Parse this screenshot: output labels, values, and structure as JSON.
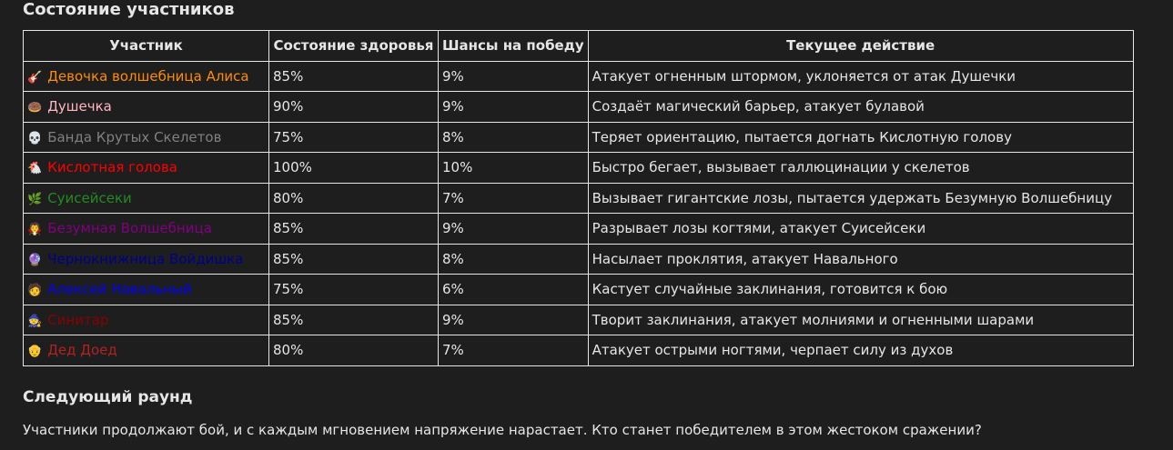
{
  "title": "Состояние участников",
  "table": {
    "header": [
      "Участник",
      "Состояние здоровья",
      "Шансы на победу",
      "Текущее действие"
    ],
    "rows": [
      {
        "icon": "🎸",
        "name": "Девочка волшебница Алиса",
        "color": "#ff8c00",
        "health": "85%",
        "chance": "9%",
        "action": "Атакует огненным штормом, уклоняется от атак Душечки"
      },
      {
        "icon": "🍩",
        "name": "Душечка",
        "color": "#ffb6c1",
        "health": "90%",
        "chance": "9%",
        "action": "Создаёт магический барьер, атакует булавой"
      },
      {
        "icon": "💀",
        "name": "Банда Крутых Скелетов",
        "color": "#808080",
        "health": "75%",
        "chance": "8%",
        "action": "Теряет ориентацию, пытается догнать Кислотную голову"
      },
      {
        "icon": "🐔",
        "name": "Кислотная голова",
        "color": "#ff0000",
        "health": "100%",
        "chance": "10%",
        "action": "Быстро бегает, вызывает галлюцинации у скелетов"
      },
      {
        "icon": "🌿",
        "name": "Суисейсеки",
        "color": "#228b22",
        "health": "80%",
        "chance": "7%",
        "action": "Вызывает гигантские лозы, пытается удержать Безумную Волшебницу"
      },
      {
        "icon": "🧛",
        "name": "Безумная Волшебница",
        "color": "#800080",
        "health": "85%",
        "chance": "9%",
        "action": "Разрывает лозы когтями, атакует Суисейсеки"
      },
      {
        "icon": "🔮",
        "name": "Чернокнижница Войдишка",
        "color": "#00008b",
        "health": "85%",
        "chance": "8%",
        "action": "Насылает проклятия, атакует Навального"
      },
      {
        "icon": "🧑",
        "name": "Алексей Навальный",
        "color": "#0000ff",
        "health": "75%",
        "chance": "6%",
        "action": "Кастует случайные заклинания, готовится к бою"
      },
      {
        "icon": "🧙",
        "name": "Синитар",
        "color": "#8b0000",
        "health": "85%",
        "chance": "9%",
        "action": "Творит заклинания, атакует молниями и огненными шарами"
      },
      {
        "icon": "👴",
        "name": "Дед Доед",
        "color": "#b22222",
        "health": "80%",
        "chance": "7%",
        "action": "Атакует острыми ногтями, черпает силу из духов"
      }
    ]
  },
  "next": {
    "title": "Следующий раунд",
    "text": "Участники продолжают бой, и с каждым мгновением напряжение нарастает. Кто станет победителем в этом жестоком сражении?"
  }
}
